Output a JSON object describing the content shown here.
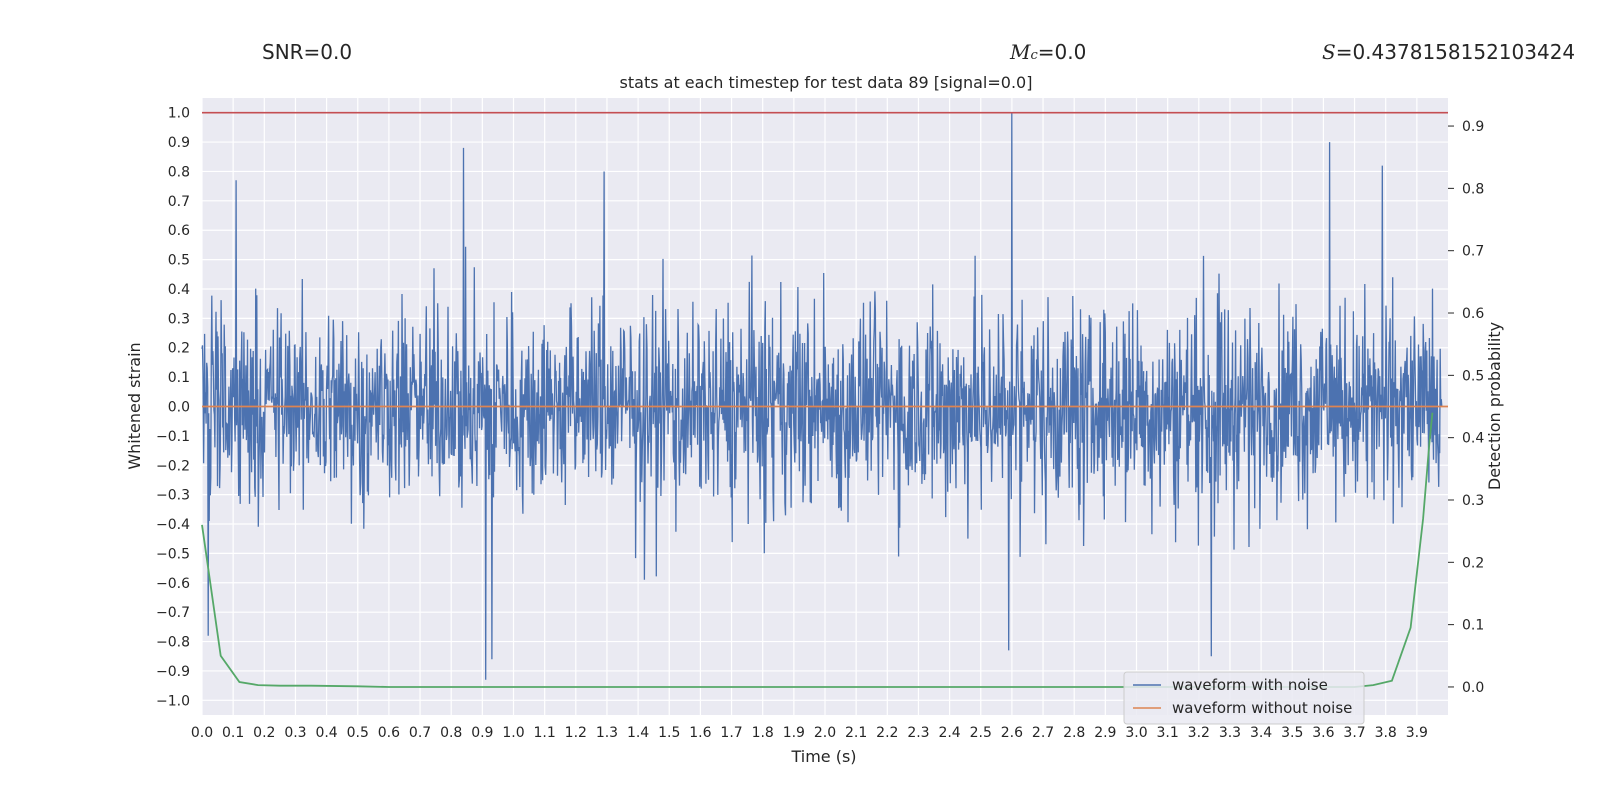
{
  "header": {
    "snr_label": "SNR=0.0",
    "mc_symbol": "M",
    "mc_subscript": "c",
    "mc_value": "=0.0",
    "s_symbol": "S",
    "s_value": "=0.4378158152103424"
  },
  "chart_data": {
    "type": "line",
    "title": "stats at each timestep for test data 89 [signal=0.0]",
    "xlabel": "Time (s)",
    "ylabel": "Whitened strain",
    "y2label": "Detection probability",
    "xlim": [
      0.0,
      4.0
    ],
    "ylim": [
      -1.05,
      1.05
    ],
    "y2lim": [
      -0.045,
      0.945
    ],
    "grid": true,
    "legend_location": "lower right",
    "xticks": [
      "0.0",
      "0.1",
      "0.2",
      "0.3",
      "0.4",
      "0.5",
      "0.6",
      "0.7",
      "0.8",
      "0.9",
      "1.0",
      "1.1",
      "1.2",
      "1.3",
      "1.4",
      "1.5",
      "1.6",
      "1.7",
      "1.8",
      "1.9",
      "2.0",
      "2.1",
      "2.2",
      "2.3",
      "2.4",
      "2.5",
      "2.6",
      "2.7",
      "2.8",
      "2.9",
      "3.0",
      "3.1",
      "3.2",
      "3.3",
      "3.4",
      "3.5",
      "3.6",
      "3.7",
      "3.8",
      "3.9"
    ],
    "yticks": [
      "1.0",
      "0.9",
      "0.8",
      "0.7",
      "0.6",
      "0.5",
      "0.4",
      "0.3",
      "0.2",
      "0.1",
      "0.0",
      "−0.1",
      "−0.2",
      "−0.3",
      "−0.4",
      "−0.5",
      "−0.6",
      "−0.7",
      "−0.8",
      "−0.9",
      "−1.0"
    ],
    "y2ticks": [
      "0.9",
      "0.8",
      "0.7",
      "0.6",
      "0.5",
      "0.4",
      "0.3",
      "0.2",
      "0.1",
      "0.0"
    ],
    "series": [
      {
        "name": "waveform with noise",
        "color": "#4c72b0",
        "axis": "left",
        "noise_amplitude_typical": 0.35,
        "peaks": [
          {
            "t": 0.84,
            "v": 0.88
          },
          {
            "t": 0.91,
            "v": -0.93
          },
          {
            "t": 0.93,
            "v": -0.86
          },
          {
            "t": 2.6,
            "v": 1.0
          },
          {
            "t": 2.59,
            "v": -0.83
          },
          {
            "t": 3.24,
            "v": -0.85
          },
          {
            "t": 3.62,
            "v": 0.9
          },
          {
            "t": 3.79,
            "v": 0.82
          },
          {
            "t": 1.29,
            "v": 0.8
          },
          {
            "t": 0.11,
            "v": 0.77
          },
          {
            "t": 0.02,
            "v": -0.78
          }
        ]
      },
      {
        "name": "waveform without noise",
        "color": "#dd8452",
        "axis": "left",
        "x": [
          0.0,
          4.0
        ],
        "y": [
          0.0,
          0.0
        ]
      },
      {
        "name": "detection probability",
        "color": "#55a868",
        "axis": "right",
        "x": [
          0.0,
          0.06,
          0.12,
          0.18,
          0.25,
          0.35,
          0.5,
          0.6,
          1.0,
          2.0,
          3.0,
          3.6,
          3.7,
          3.76,
          3.82,
          3.88,
          3.92,
          3.94,
          3.95
        ],
        "y": [
          0.26,
          0.05,
          0.008,
          0.003,
          0.002,
          0.002,
          0.001,
          0.0,
          0.0,
          0.0,
          0.0,
          0.0,
          0.0,
          0.003,
          0.01,
          0.095,
          0.27,
          0.39,
          0.44
        ]
      }
    ],
    "hlines": [
      {
        "y": 1.0,
        "color": "#c44e52",
        "axis": "left"
      }
    ]
  }
}
